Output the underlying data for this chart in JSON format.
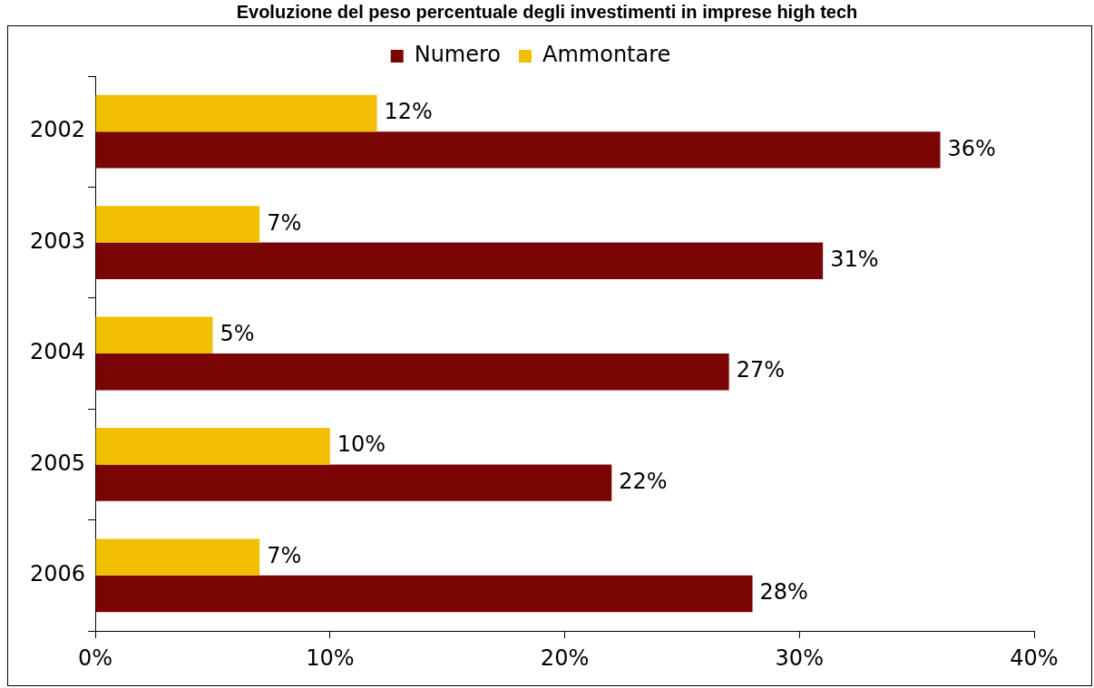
{
  "chart_data": {
    "type": "bar",
    "orientation": "horizontal",
    "title": "Evoluzione del peso percentuale degli investimenti in imprese high tech",
    "categories": [
      "2002",
      "2003",
      "2004",
      "2005",
      "2006"
    ],
    "series": [
      {
        "name": "Numero",
        "color": "#7a0505",
        "values": [
          36,
          31,
          27,
          22,
          28
        ],
        "value_labels": [
          "36%",
          "31%",
          "27%",
          "22%",
          "28%"
        ]
      },
      {
        "name": "Ammontare",
        "color": "#f0c000",
        "values": [
          12,
          7,
          5,
          10,
          7
        ],
        "value_labels": [
          "12%",
          "7%",
          "5%",
          "10%",
          "7%"
        ]
      }
    ],
    "xlim": [
      0,
      40
    ],
    "xticks": [
      {
        "value": 0,
        "label": "0%"
      },
      {
        "value": 10,
        "label": "10%"
      },
      {
        "value": 20,
        "label": "20%"
      },
      {
        "value": 30,
        "label": "30%"
      },
      {
        "value": 40,
        "label": "40%"
      }
    ],
    "grid": false,
    "legend": "top"
  }
}
